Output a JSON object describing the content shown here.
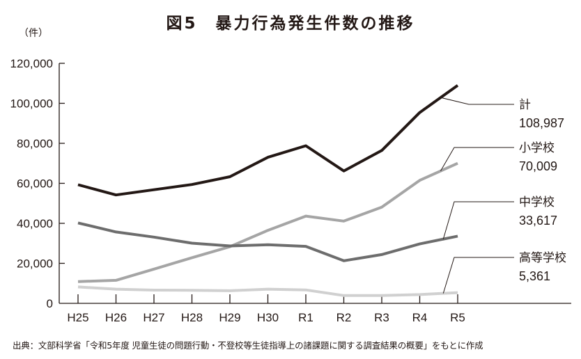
{
  "header": {
    "title": "図5　暴力行為発生件数の推移",
    "unit": "（件）"
  },
  "footer": {
    "source": "出典：文部科学省「令和5年度 児童生徒の問題行動・不登校等生徒指導上の諸課題に関する調査結果の概要」をもとに作成"
  },
  "chart_data": {
    "type": "line",
    "title": "図5　暴力行為発生件数の推移",
    "xlabel": "",
    "ylabel": "（件）",
    "ylim": [
      0,
      120000
    ],
    "yticks": [
      0,
      20000,
      40000,
      60000,
      80000,
      100000,
      120000
    ],
    "ytick_labels": [
      "0",
      "20,000",
      "40,000",
      "60,000",
      "80,000",
      "100,000",
      "120,000"
    ],
    "grid": false,
    "legend_position": "right (inline callout labels)",
    "categories": [
      "H25",
      "H26",
      "H27",
      "H28",
      "H29",
      "H30",
      "R1",
      "R2",
      "R3",
      "R4",
      "R5"
    ],
    "series": [
      {
        "name": "計",
        "end_label": "108,987",
        "color": "#231815",
        "width": 4,
        "values": [
          59300,
          54200,
          56800,
          59400,
          63300,
          73000,
          78800,
          66200,
          76400,
          95400,
          108987
        ]
      },
      {
        "name": "小学校",
        "end_label": "70,009",
        "color": "#a5a5a5",
        "width": 4,
        "values": [
          10900,
          11500,
          17100,
          22800,
          28300,
          36500,
          43600,
          41100,
          48100,
          61500,
          70009
        ]
      },
      {
        "name": "中学校",
        "end_label": "33,617",
        "color": "#6d6d6d",
        "width": 4,
        "values": [
          40200,
          35700,
          33100,
          30100,
          28700,
          29300,
          28500,
          21300,
          24400,
          29700,
          33617
        ]
      },
      {
        "name": "高等学校",
        "end_label": "5,361",
        "color": "#d0d0d0",
        "width": 4,
        "values": [
          8200,
          7100,
          6600,
          6500,
          6300,
          7100,
          6700,
          3900,
          3900,
          4400,
          5361
        ]
      }
    ]
  }
}
